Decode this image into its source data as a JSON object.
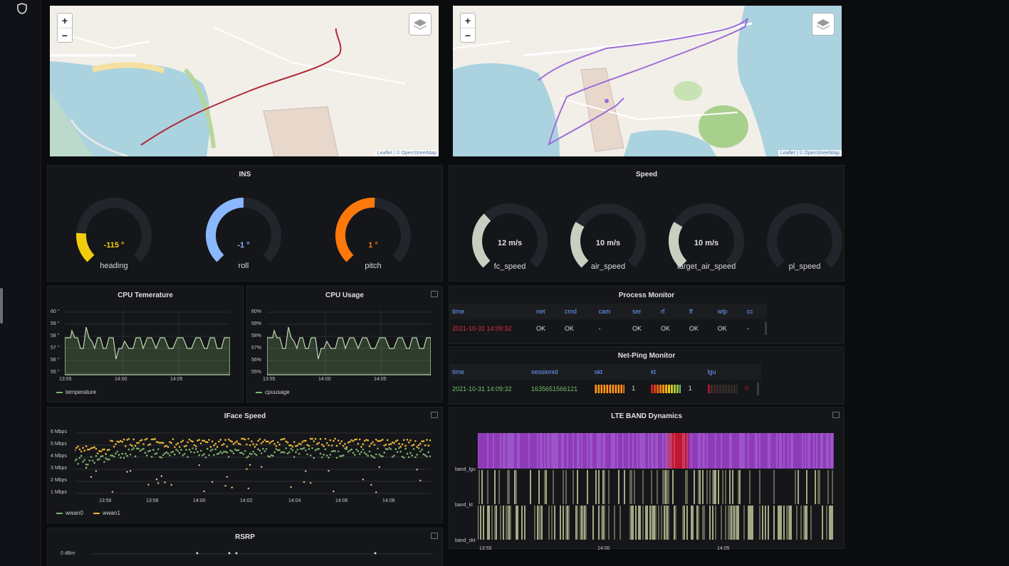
{
  "maps": [
    {
      "attribution": "Leaflet | © OpenStreetMap",
      "zoom_in": "+",
      "zoom_out": "−"
    },
    {
      "attribution": "Leaflet | © OpenStreetMap",
      "zoom_in": "+",
      "zoom_out": "−"
    }
  ],
  "ins": {
    "title": "INS",
    "gauges": [
      {
        "label": "heading",
        "value": "-115 °",
        "color": "#f2cc0c",
        "fraction": 0.18
      },
      {
        "label": "roll",
        "value": "-1 °",
        "color": "#8ab8ff",
        "fraction": 0.5
      },
      {
        "label": "pitch",
        "value": "1 °",
        "color": "#ff780a",
        "fraction": 0.51
      }
    ]
  },
  "speed": {
    "title": "Speed",
    "gauges": [
      {
        "label": "fc_speed",
        "value": "12 m/s",
        "color": "#c7d0c0",
        "fraction": 0.34
      },
      {
        "label": "air_speed",
        "value": "10 m/s",
        "color": "#c7d0c0",
        "fraction": 0.28
      },
      {
        "label": "target_air_speed",
        "value": "10 m/s",
        "color": "#c7d0c0",
        "fraction": 0.28
      },
      {
        "label": "pl_speed",
        "value": "",
        "color": "#c7d0c0",
        "fraction": 0.0
      }
    ]
  },
  "cpu_temp": {
    "title": "CPU Temerature",
    "y_ticks": [
      "60 °",
      "59 °",
      "58 °",
      "57 °",
      "56 °",
      "55 °"
    ],
    "x_ticks": [
      "13:55",
      "14:00",
      "14:05"
    ],
    "legend": "temperature",
    "color": "#7eb26d"
  },
  "cpu_usage": {
    "title": "CPU Usage",
    "y_ticks": [
      "60%",
      "59%",
      "58%",
      "57%",
      "56%",
      "55%"
    ],
    "x_ticks": [
      "13:55",
      "14:00",
      "14:05"
    ],
    "legend": "cpuusage",
    "color": "#7eb26d"
  },
  "process_monitor": {
    "title": "Process Monitor",
    "columns": [
      "time",
      "net",
      "cmd",
      "cam",
      "ser",
      "rf",
      "ff",
      "wlp",
      "cc"
    ],
    "row": [
      "2021-10-31 14:09:32",
      "OK",
      "OK",
      "-",
      "OK",
      "OK",
      "OK",
      "OK",
      "-"
    ]
  },
  "net_ping": {
    "title": "Net-Ping Monitor",
    "columns": [
      "time",
      "sessionid",
      "skt",
      "kt",
      "lgu"
    ],
    "row": {
      "time": "2021-10-31 14:09:32",
      "sessionid": "1635651566121",
      "skt": "1",
      "kt": "1",
      "lgu": "0"
    }
  },
  "iface": {
    "title": "IFace Speed",
    "y_ticks": [
      "6 Mbps",
      "5 Mbps",
      "4 Mbps",
      "3 Mbps",
      "2 Mbps",
      "1 Mbps"
    ],
    "x_ticks": [
      "13:56",
      "13:58",
      "14:00",
      "14:02",
      "14:04",
      "14:06",
      "14:08"
    ],
    "legend": [
      "wwan0",
      "wwan1"
    ],
    "colors": [
      "#7eb26d",
      "#eab839"
    ]
  },
  "lte": {
    "title": "LTE BAND Dynamics",
    "rows": [
      "band_lgu",
      "band_kt",
      "band_skt"
    ],
    "x_ticks": [
      "13:55",
      "14:00",
      "14:05"
    ],
    "colors": [
      "#8f3bb8",
      "#c4162a",
      "#d6d9a8"
    ]
  },
  "rsrp": {
    "title": "RSRP",
    "y_ticks": [
      "0 dBm"
    ]
  }
}
